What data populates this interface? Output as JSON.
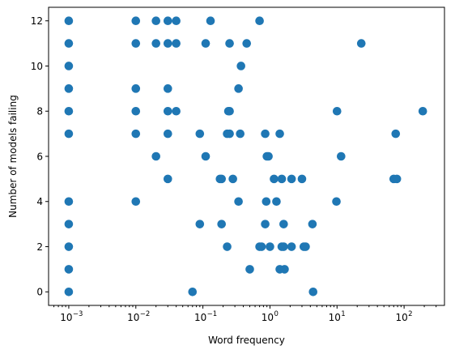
{
  "chart_data": {
    "type": "scatter",
    "title": "",
    "xlabel": "Word frequency",
    "ylabel": "Number of models failing",
    "xscale": "log",
    "xlim": [
      0.0005,
      400
    ],
    "ylim": [
      -0.6,
      12.6
    ],
    "x_ticks": [
      {
        "value": 0.001,
        "label": "10",
        "exp": "−3"
      },
      {
        "value": 0.01,
        "label": "10",
        "exp": "−2"
      },
      {
        "value": 0.1,
        "label": "10",
        "exp": "−1"
      },
      {
        "value": 1,
        "label": "10",
        "exp": "0"
      },
      {
        "value": 10,
        "label": "10",
        "exp": "1"
      },
      {
        "value": 100,
        "label": "10",
        "exp": "2"
      }
    ],
    "y_ticks": [
      0,
      2,
      4,
      6,
      8,
      10,
      12
    ],
    "grid": false,
    "color": "#1f77b4",
    "series": [
      {
        "points": [
          [
            0.001,
            12
          ],
          [
            0.001,
            11
          ],
          [
            0.001,
            10
          ],
          [
            0.001,
            9
          ],
          [
            0.001,
            8
          ],
          [
            0.001,
            7
          ],
          [
            0.001,
            4
          ],
          [
            0.001,
            3
          ],
          [
            0.001,
            2
          ],
          [
            0.001,
            1
          ],
          [
            0.001,
            0
          ],
          [
            0.01,
            12
          ],
          [
            0.02,
            12
          ],
          [
            0.03,
            12
          ],
          [
            0.04,
            12
          ],
          [
            0.13,
            12
          ],
          [
            0.7,
            12
          ],
          [
            0.01,
            11
          ],
          [
            0.02,
            11
          ],
          [
            0.03,
            11
          ],
          [
            0.04,
            11
          ],
          [
            0.11,
            11
          ],
          [
            0.25,
            11
          ],
          [
            0.45,
            11
          ],
          [
            23,
            11
          ],
          [
            0.37,
            10
          ],
          [
            0.01,
            9
          ],
          [
            0.03,
            9
          ],
          [
            0.34,
            9
          ],
          [
            0.01,
            8
          ],
          [
            0.03,
            8
          ],
          [
            0.04,
            8
          ],
          [
            0.24,
            8
          ],
          [
            0.25,
            8
          ],
          [
            10,
            8
          ],
          [
            190,
            8
          ],
          [
            0.01,
            7
          ],
          [
            0.03,
            7
          ],
          [
            0.09,
            7
          ],
          [
            0.23,
            7
          ],
          [
            0.25,
            7
          ],
          [
            0.36,
            7
          ],
          [
            0.85,
            7
          ],
          [
            1.4,
            7
          ],
          [
            75,
            7
          ],
          [
            0.02,
            6
          ],
          [
            0.11,
            6
          ],
          [
            0.9,
            6
          ],
          [
            0.95,
            6
          ],
          [
            11.5,
            6
          ],
          [
            0.03,
            5
          ],
          [
            0.18,
            5
          ],
          [
            0.19,
            5
          ],
          [
            0.28,
            5
          ],
          [
            1.15,
            5
          ],
          [
            1.5,
            5
          ],
          [
            2.1,
            5
          ],
          [
            3,
            5
          ],
          [
            70,
            5
          ],
          [
            78,
            5
          ],
          [
            0.01,
            4
          ],
          [
            0.34,
            4
          ],
          [
            0.88,
            4
          ],
          [
            1.25,
            4
          ],
          [
            9.8,
            4
          ],
          [
            0.09,
            3
          ],
          [
            0.19,
            3
          ],
          [
            0.85,
            3
          ],
          [
            1.6,
            3
          ],
          [
            4.3,
            3
          ],
          [
            0.23,
            2
          ],
          [
            0.7,
            2
          ],
          [
            0.75,
            2
          ],
          [
            1.0,
            2
          ],
          [
            1.5,
            2
          ],
          [
            1.6,
            2
          ],
          [
            2.1,
            2
          ],
          [
            3.2,
            2
          ],
          [
            3.4,
            2
          ],
          [
            0.5,
            1
          ],
          [
            1.4,
            1
          ],
          [
            1.65,
            1
          ],
          [
            0.07,
            0
          ],
          [
            4.4,
            0
          ]
        ]
      }
    ]
  }
}
